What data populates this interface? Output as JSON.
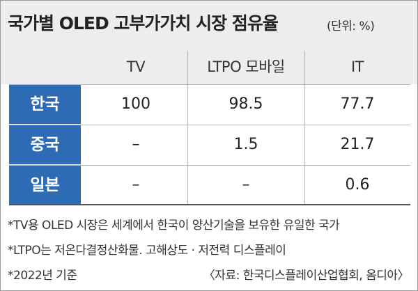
{
  "chart_data": {
    "type": "table",
    "title": "국가별 OLED 고부가가치 시장 점유율",
    "unit": "(단위: %)",
    "columns": [
      "TV",
      "LTPO 모바일",
      "IT"
    ],
    "rows": [
      {
        "label": "한국",
        "values": [
          "100",
          "98.5",
          "77.7"
        ]
      },
      {
        "label": "중국",
        "values": [
          "–",
          "1.5",
          "21.7"
        ]
      },
      {
        "label": "일본",
        "values": [
          "–",
          "–",
          "0.6"
        ]
      }
    ]
  },
  "notes": [
    "*TV용 OLED 시장은 세계에서 한국이 양산기술을 보유한 유일한 국가",
    "*LTPO는 저온다결정산화물. 고해상도 · 저전력 디스플레이",
    "*2022년 기준"
  ],
  "source": "〈자료: 한국디스플레이산업협회, 옴디아〉",
  "colors": {
    "header_bg": "#ededed",
    "row_label_bg": "#2e6bb5",
    "row_label_text": "#ffffff",
    "grid": "#b5b5b5"
  }
}
